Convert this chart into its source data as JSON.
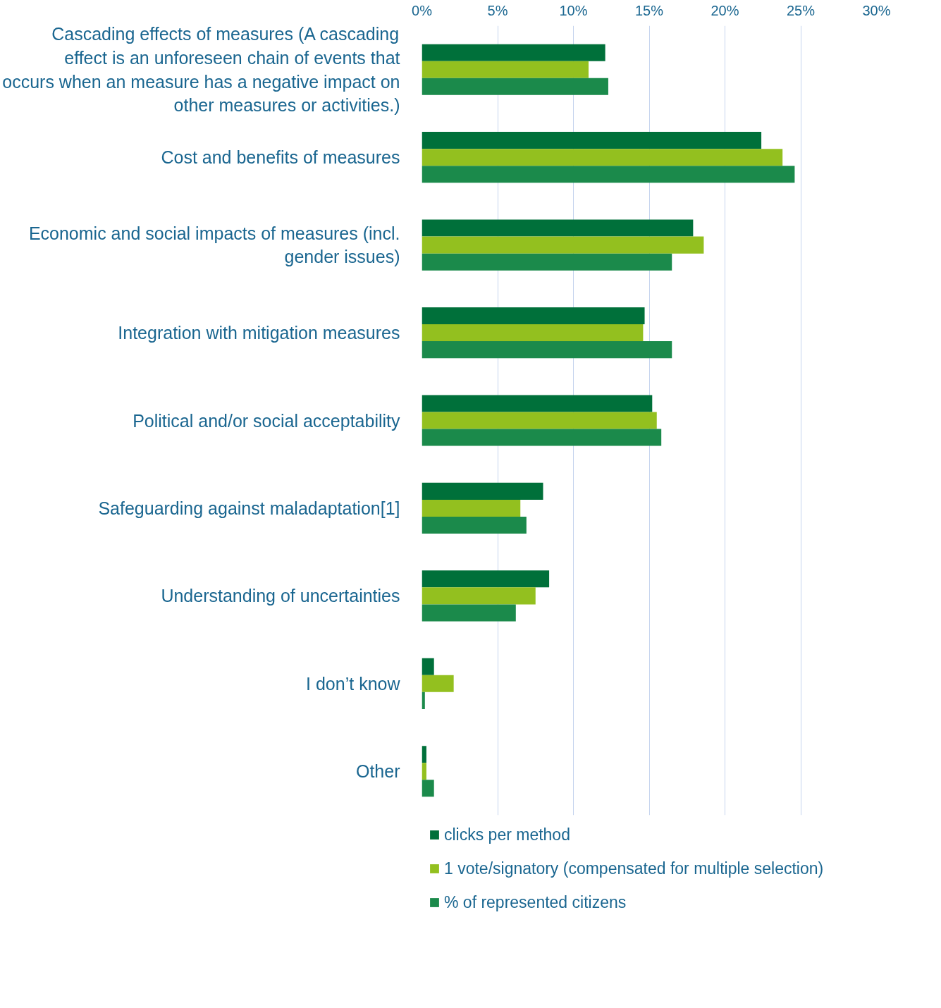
{
  "chart_data": {
    "type": "bar",
    "orientation": "horizontal",
    "categories": [
      "Cascading effects of measures (A cascading effect is an unforeseen chain of events that occurs when an measure has a negative impact on other measures or activities.)",
      "Cost and benefits of measures",
      "Economic and social impacts of measures (incl. gender issues)",
      "Integration with mitigation measures",
      "Political and/or social acceptability",
      "Safeguarding against maladaptation[1]",
      "Understanding of uncertainties",
      "I don’t know",
      "Other"
    ],
    "series": [
      {
        "name": "clicks per method",
        "color": "#00703a",
        "values": [
          12.1,
          22.4,
          17.9,
          14.7,
          15.2,
          8.0,
          8.4,
          0.8,
          0.3
        ]
      },
      {
        "name": "1 vote/signatory (compensated for multiple selection)",
        "color": "#93c01f",
        "values": [
          11.0,
          23.8,
          18.6,
          14.6,
          15.5,
          6.5,
          7.5,
          2.1,
          0.3
        ]
      },
      {
        "name": "% of represented citizens",
        "color": "#1b8a4b",
        "values": [
          12.3,
          24.6,
          16.5,
          16.5,
          15.8,
          6.9,
          6.2,
          0.2,
          0.8
        ]
      }
    ],
    "xlim": [
      0,
      30
    ],
    "xticks": [
      {
        "value": 0,
        "label": "0%"
      },
      {
        "value": 5,
        "label": "5%"
      },
      {
        "value": 10,
        "label": "10%"
      },
      {
        "value": 15,
        "label": "15%"
      },
      {
        "value": 20,
        "label": "20%"
      },
      {
        "value": 25,
        "label": "25%"
      },
      {
        "value": 30,
        "label": "30%"
      }
    ],
    "grid": "x",
    "legend": "bottom"
  }
}
